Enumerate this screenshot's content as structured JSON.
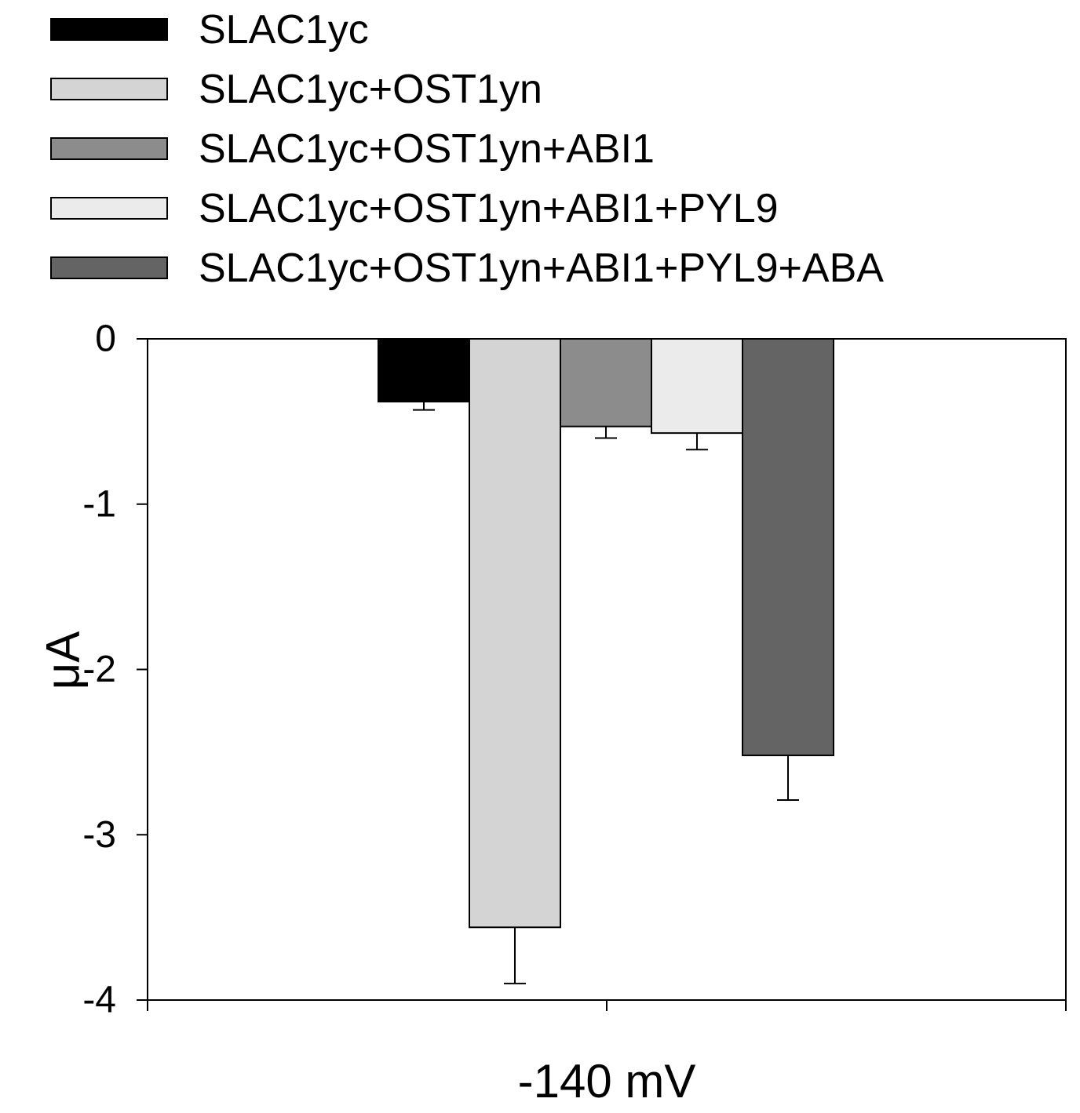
{
  "chart_data": {
    "type": "bar",
    "title": "",
    "xlabel": "-140 mV",
    "ylabel": "μA",
    "categories": [
      "-140 mV"
    ],
    "ylim": [
      -4,
      0
    ],
    "yticks": [
      0,
      -1,
      -2,
      -3,
      -4
    ],
    "grid": false,
    "legend_position": "top",
    "series": [
      {
        "name": "SLAC1yc",
        "values": [
          -0.38
        ],
        "error": [
          0.05
        ],
        "color": "#000000"
      },
      {
        "name": "SLAC1yc+OST1yn",
        "values": [
          -3.56
        ],
        "error": [
          0.34
        ],
        "color": "#d4d4d4"
      },
      {
        "name": "SLAC1yc+OST1yn+ABI1",
        "values": [
          -0.53
        ],
        "error": [
          0.07
        ],
        "color": "#8c8c8c"
      },
      {
        "name": "SLAC1yc+OST1yn+ABI1+PYL9",
        "values": [
          -0.57
        ],
        "error": [
          0.1
        ],
        "color": "#ebebeb"
      },
      {
        "name": "SLAC1yc+OST1yn+ABI1+PYL9+ABA",
        "values": [
          -2.52
        ],
        "error": [
          0.27
        ],
        "color": "#646464"
      }
    ]
  }
}
